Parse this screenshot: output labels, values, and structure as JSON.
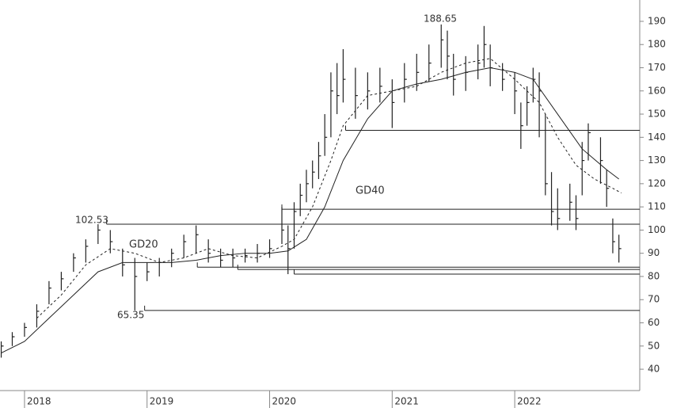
{
  "chart_data": {
    "type": "ohlc",
    "xlim": [
      2017.8,
      2023.02
    ],
    "xticks": [
      2018,
      2019,
      2020,
      2021,
      2022
    ],
    "ylim": [
      30.8,
      199.2
    ],
    "yticks": [
      40,
      50,
      60,
      70,
      80,
      90,
      100,
      110,
      120,
      130,
      140,
      150,
      160,
      170,
      180,
      190
    ],
    "color": "#222222",
    "x": [
      2017.81,
      2017.9,
      2018.0,
      2018.1,
      2018.2,
      2018.3,
      2018.4,
      2018.5,
      2018.6,
      2018.7,
      2018.8,
      2018.9,
      2019.0,
      2019.1,
      2019.2,
      2019.3,
      2019.4,
      2019.5,
      2019.6,
      2019.7,
      2019.8,
      2019.9,
      2020.0,
      2020.1,
      2020.15,
      2020.2,
      2020.25,
      2020.3,
      2020.35,
      2020.4,
      2020.45,
      2020.5,
      2020.55,
      2020.6,
      2020.7,
      2020.8,
      2020.9,
      2021.0,
      2021.1,
      2021.2,
      2021.3,
      2021.4,
      2021.45,
      2021.5,
      2021.6,
      2021.7,
      2021.75,
      2021.8,
      2021.9,
      2022.0,
      2022.05,
      2022.1,
      2022.15,
      2022.2,
      2022.25,
      2022.3,
      2022.35,
      2022.45,
      2022.5,
      2022.55,
      2022.6,
      2022.7,
      2022.75,
      2022.8,
      2022.85
    ],
    "high": [
      52,
      56,
      60,
      68,
      78,
      82,
      90,
      96,
      102.53,
      100,
      92,
      88,
      86,
      88,
      92,
      98,
      102,
      96,
      92,
      92,
      92,
      94,
      96,
      110,
      102,
      112,
      120,
      126,
      130,
      138,
      150,
      168,
      172,
      178,
      170,
      168,
      170,
      165,
      172,
      176,
      180,
      188.65,
      186,
      176,
      175,
      180,
      188,
      180,
      172,
      168,
      155,
      162,
      170,
      168,
      150,
      125,
      118,
      120,
      115,
      138,
      146,
      140,
      126,
      105,
      98
    ],
    "low": [
      45,
      50,
      54,
      58,
      68,
      74,
      82,
      86,
      94,
      90,
      80,
      65.35,
      78,
      80,
      84,
      88,
      90,
      86,
      84,
      84,
      86,
      86,
      88,
      94,
      81,
      92,
      106,
      112,
      118,
      122,
      132,
      140,
      150,
      155,
      148,
      152,
      155,
      144,
      155,
      160,
      164,
      170,
      165,
      158,
      160,
      165,
      170,
      162,
      160,
      150,
      135,
      145,
      155,
      140,
      115,
      102,
      100,
      104,
      100,
      115,
      130,
      120,
      110,
      90,
      86
    ],
    "close": [
      50,
      54,
      58,
      65,
      75,
      79,
      88,
      93,
      100,
      95,
      85,
      80,
      82,
      86,
      90,
      95,
      98,
      90,
      87,
      88,
      89,
      90,
      92,
      100,
      92,
      108,
      115,
      120,
      125,
      132,
      140,
      160,
      158,
      165,
      158,
      160,
      162,
      155,
      165,
      168,
      172,
      182,
      175,
      165,
      168,
      172,
      180,
      170,
      165,
      160,
      145,
      155,
      165,
      160,
      120,
      108,
      105,
      112,
      105,
      130,
      142,
      130,
      118,
      95,
      92
    ],
    "series": [
      {
        "name": "GD20",
        "dash": true,
        "color": "#222222",
        "x": [
          2018.1,
          2018.3,
          2018.5,
          2018.7,
          2018.9,
          2019.1,
          2019.3,
          2019.5,
          2019.7,
          2019.9,
          2020.1,
          2020.2,
          2020.35,
          2020.5,
          2020.6,
          2020.8,
          2021.0,
          2021.2,
          2021.4,
          2021.6,
          2021.8,
          2022.0,
          2022.2,
          2022.35,
          2022.5,
          2022.65,
          2022.8,
          2022.87
        ],
        "values": [
          62,
          72,
          85,
          92,
          90,
          86,
          88,
          92,
          89,
          88,
          93,
          96,
          110,
          130,
          145,
          158,
          160,
          162,
          168,
          172,
          174,
          165,
          155,
          140,
          128,
          122,
          118,
          116
        ]
      },
      {
        "name": "GD40",
        "dash": false,
        "color": "#222222",
        "x": [
          2017.81,
          2018.0,
          2018.2,
          2018.4,
          2018.6,
          2018.8,
          2019.0,
          2019.2,
          2019.4,
          2019.6,
          2019.8,
          2020.0,
          2020.15,
          2020.3,
          2020.45,
          2020.6,
          2020.8,
          2021.0,
          2021.2,
          2021.4,
          2021.6,
          2021.8,
          2022.0,
          2022.15,
          2022.35,
          2022.55,
          2022.75,
          2022.85
        ],
        "values": [
          47,
          52,
          62,
          72,
          82,
          86,
          86,
          86,
          87,
          89,
          90,
          90,
          91,
          96,
          110,
          130,
          148,
          160,
          163,
          165,
          168,
          170,
          168,
          165,
          150,
          135,
          126,
          122
        ]
      }
    ],
    "levels": [
      {
        "value": 143,
        "start": 2020.62
      },
      {
        "value": 109,
        "start": 2020.1
      },
      {
        "value": 102.53,
        "start": 2018.67
      },
      {
        "value": 84,
        "start": 2019.41
      },
      {
        "value": 83,
        "start": 2019.74
      },
      {
        "value": 81,
        "start": 2020.2
      },
      {
        "value": 65.35,
        "start": 2018.98
      }
    ],
    "annotations": [
      "188.65",
      "102.53",
      "65.35"
    ]
  }
}
